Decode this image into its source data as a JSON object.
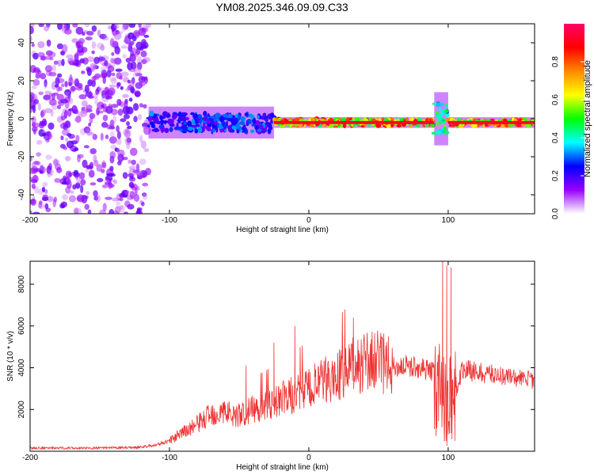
{
  "title": "YM08.2025.346.09.09.C33",
  "colors": {
    "signal": "#ee3333",
    "frame": "#000000",
    "background": "#ffffff"
  },
  "chart_data": [
    {
      "type": "heatmap",
      "xlabel": "Height of straight line (km)",
      "ylabel": "Frequency (Hz)",
      "xlim": [
        -200,
        162
      ],
      "ylim": [
        -50,
        50
      ],
      "xticks": [
        -200,
        -100,
        0,
        100
      ],
      "yticks": [
        -40,
        -20,
        0,
        20,
        40
      ],
      "colorbar": {
        "label": "Normalized spectral amplitude",
        "range": [
          0,
          1
        ],
        "ticks": [
          0.0,
          0.2,
          0.4,
          0.6,
          0.8
        ],
        "colormap": [
          "#ffffff",
          "#9900ff",
          "#0000ff",
          "#00ffff",
          "#00ff00",
          "#ffff00",
          "#ff8800",
          "#ff0000",
          "#ff0066"
        ]
      },
      "regions": [
        {
          "x": [
            -200,
            -115
          ],
          "f_center": 0,
          "f_halfwidth": 50,
          "amplitude": 0.05,
          "description": "noise"
        },
        {
          "x": [
            -115,
            -25
          ],
          "f_center": -2,
          "f_halfwidth": 6,
          "amplitude": 0.3
        },
        {
          "x": [
            -25,
            90
          ],
          "f_center": -2,
          "f_halfwidth": 2,
          "amplitude": 0.85
        },
        {
          "x": [
            90,
            100
          ],
          "f_center": 0,
          "f_halfwidth": 10,
          "amplitude": 0.5
        },
        {
          "x": [
            100,
            162
          ],
          "f_center": -2,
          "f_halfwidth": 2,
          "amplitude": 0.9
        }
      ]
    },
    {
      "type": "line",
      "xlabel": "Height of straight line (km)",
      "ylabel": "SNR (10 * v/v)",
      "xlim": [
        -200,
        162
      ],
      "ylim": [
        0,
        9100
      ],
      "xticks": [
        -200,
        -100,
        0,
        100
      ],
      "yticks": [
        2000,
        4000,
        6000,
        8000
      ],
      "series": [
        {
          "x": [
            -200,
            -180,
            -160,
            -140,
            -120,
            -110,
            -100,
            -90,
            -80,
            -70,
            -60,
            -50,
            -40,
            -30,
            -20,
            -10,
            0,
            10,
            20,
            30,
            40,
            50,
            60,
            70,
            80,
            90,
            95,
            100,
            105,
            110,
            120,
            130,
            140,
            150,
            162
          ],
          "y": [
            150,
            160,
            150,
            160,
            200,
            300,
            500,
            900,
            1300,
            1800,
            1900,
            1700,
            2000,
            2200,
            2500,
            2700,
            3000,
            3300,
            3600,
            4000,
            4300,
            4300,
            4000,
            4100,
            4000,
            3800,
            2500,
            2500,
            2700,
            3900,
            3800,
            3700,
            3600,
            3500,
            3400
          ]
        }
      ],
      "peaks": [
        {
          "x": -45,
          "y": 4100
        },
        {
          "x": -25,
          "y": 5200
        },
        {
          "x": -10,
          "y": 6000
        },
        {
          "x": 32,
          "y": 6400
        },
        {
          "x": 96,
          "y": 9100
        },
        {
          "x": 99,
          "y": 8900
        },
        {
          "x": 102,
          "y": 8800
        }
      ]
    }
  ]
}
